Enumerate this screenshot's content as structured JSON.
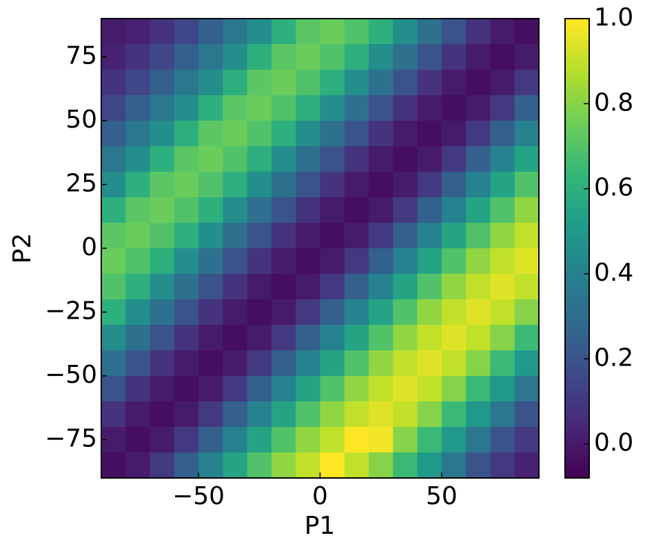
{
  "chart_data": {
    "type": "heatmap",
    "colormap": "viridis",
    "xlabel": "P1",
    "ylabel": "P2",
    "xlim": [
      -90,
      90
    ],
    "ylim": [
      -90,
      90
    ],
    "xticks": [
      {
        "value": -50,
        "label": "−50"
      },
      0,
      50
    ],
    "yticks": [
      {
        "value": -75,
        "label": "−75"
      },
      {
        "value": -50,
        "label": "−50"
      },
      {
        "value": -25,
        "label": "−25"
      },
      0,
      25,
      50,
      75
    ],
    "clim": [
      -0.08,
      1.0
    ],
    "cticks": [
      {
        "value": 0,
        "label": "0.0"
      },
      0.2,
      0.4,
      0.6,
      0.8,
      {
        "value": 1,
        "label": "1.0"
      }
    ],
    "values": [
      [
        0.0,
        0.02,
        0.08,
        0.15,
        0.25,
        0.35,
        0.45,
        0.6,
        0.72,
        0.75,
        0.7,
        0.6,
        0.45,
        0.32,
        0.2,
        0.08,
        0.0,
        -0.04
      ],
      [
        0.02,
        0.08,
        0.15,
        0.25,
        0.35,
        0.45,
        0.6,
        0.72,
        0.75,
        0.7,
        0.6,
        0.45,
        0.32,
        0.2,
        0.08,
        0.0,
        -0.04,
        0.0
      ],
      [
        0.08,
        0.15,
        0.25,
        0.35,
        0.45,
        0.6,
        0.72,
        0.75,
        0.7,
        0.6,
        0.45,
        0.32,
        0.2,
        0.08,
        0.0,
        -0.04,
        0.0,
        0.1
      ],
      [
        0.15,
        0.25,
        0.35,
        0.45,
        0.6,
        0.72,
        0.75,
        0.7,
        0.6,
        0.45,
        0.32,
        0.2,
        0.08,
        0.0,
        -0.04,
        0.0,
        0.1,
        0.25
      ],
      [
        0.25,
        0.35,
        0.45,
        0.6,
        0.72,
        0.75,
        0.7,
        0.6,
        0.45,
        0.32,
        0.2,
        0.08,
        0.0,
        -0.04,
        0.0,
        0.1,
        0.25,
        0.4
      ],
      [
        0.35,
        0.45,
        0.6,
        0.72,
        0.75,
        0.7,
        0.6,
        0.45,
        0.32,
        0.2,
        0.08,
        0.0,
        -0.04,
        0.0,
        0.1,
        0.25,
        0.4,
        0.55
      ],
      [
        0.45,
        0.6,
        0.72,
        0.75,
        0.7,
        0.6,
        0.45,
        0.32,
        0.2,
        0.08,
        0.0,
        -0.04,
        0.0,
        0.1,
        0.25,
        0.4,
        0.55,
        0.7
      ],
      [
        0.6,
        0.72,
        0.75,
        0.7,
        0.6,
        0.45,
        0.32,
        0.2,
        0.08,
        0.0,
        -0.04,
        0.0,
        0.1,
        0.25,
        0.4,
        0.55,
        0.7,
        0.82
      ],
      [
        0.72,
        0.75,
        0.7,
        0.6,
        0.45,
        0.32,
        0.2,
        0.08,
        0.0,
        -0.04,
        0.0,
        0.1,
        0.25,
        0.4,
        0.55,
        0.7,
        0.82,
        0.9
      ],
      [
        0.75,
        0.7,
        0.6,
        0.45,
        0.32,
        0.2,
        0.08,
        0.0,
        -0.04,
        0.0,
        0.1,
        0.25,
        0.4,
        0.55,
        0.7,
        0.82,
        0.9,
        0.95
      ],
      [
        0.7,
        0.6,
        0.45,
        0.32,
        0.2,
        0.08,
        0.0,
        -0.04,
        0.0,
        0.1,
        0.25,
        0.4,
        0.55,
        0.7,
        0.82,
        0.9,
        0.95,
        0.9
      ],
      [
        0.6,
        0.45,
        0.32,
        0.2,
        0.08,
        0.0,
        -0.04,
        0.0,
        0.1,
        0.25,
        0.4,
        0.55,
        0.7,
        0.82,
        0.9,
        0.95,
        0.9,
        0.8
      ],
      [
        0.45,
        0.32,
        0.2,
        0.08,
        0.0,
        -0.04,
        0.0,
        0.1,
        0.25,
        0.4,
        0.55,
        0.7,
        0.82,
        0.9,
        0.95,
        0.9,
        0.8,
        0.65
      ],
      [
        0.32,
        0.2,
        0.08,
        0.0,
        -0.04,
        0.0,
        0.1,
        0.25,
        0.4,
        0.55,
        0.7,
        0.82,
        0.9,
        0.95,
        0.9,
        0.8,
        0.65,
        0.5
      ],
      [
        0.2,
        0.08,
        0.0,
        -0.04,
        0.0,
        0.1,
        0.25,
        0.4,
        0.55,
        0.7,
        0.82,
        0.9,
        0.95,
        0.9,
        0.8,
        0.65,
        0.5,
        0.35
      ],
      [
        0.08,
        0.0,
        -0.04,
        0.0,
        0.1,
        0.25,
        0.4,
        0.55,
        0.7,
        0.82,
        0.9,
        0.95,
        0.9,
        0.8,
        0.65,
        0.5,
        0.35,
        0.2
      ],
      [
        0.0,
        -0.04,
        0.0,
        0.1,
        0.25,
        0.4,
        0.55,
        0.7,
        0.82,
        0.9,
        1.0,
        0.98,
        0.8,
        0.65,
        0.5,
        0.35,
        0.2,
        0.1
      ],
      [
        -0.04,
        0.0,
        0.1,
        0.25,
        0.4,
        0.55,
        0.7,
        0.82,
        0.9,
        1.0,
        0.9,
        0.8,
        0.65,
        0.5,
        0.35,
        0.2,
        0.1,
        0.02
      ]
    ]
  }
}
